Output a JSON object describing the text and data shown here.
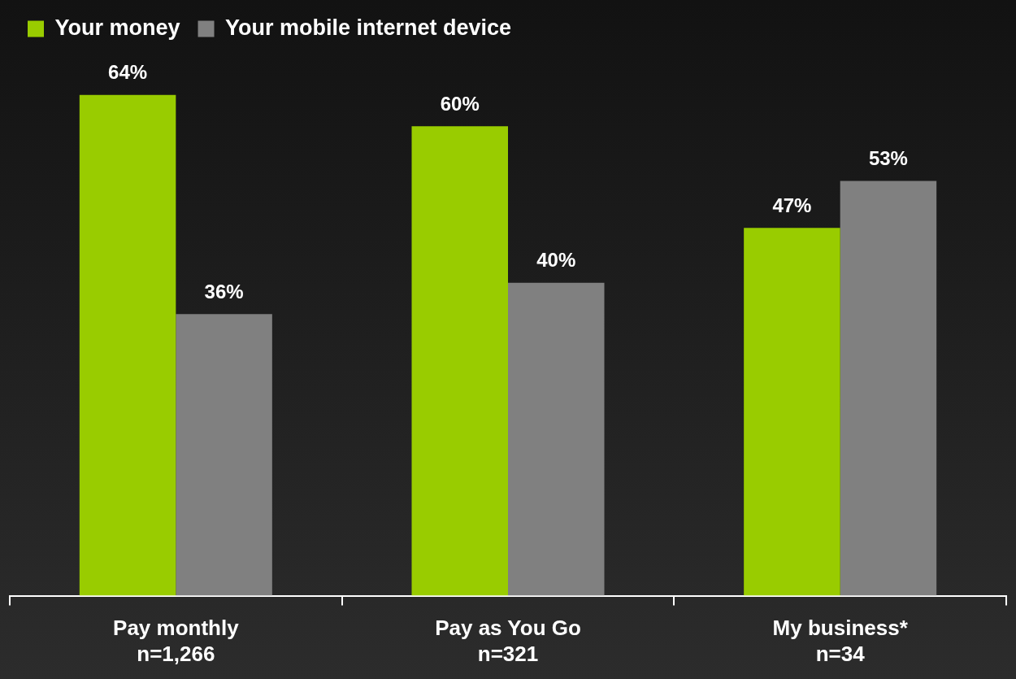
{
  "chart_data": {
    "type": "bar",
    "categories": [
      "Pay monthly\nn=1,266",
      "Pay as You Go\nn=321",
      "My business*\nn=34"
    ],
    "series": [
      {
        "name": "Your money",
        "color": "#99cc00",
        "values": [
          64,
          60,
          47
        ],
        "value_labels": [
          "64%",
          "60%",
          "47%"
        ]
      },
      {
        "name": "Your mobile internet device",
        "color": "#808080",
        "values": [
          36,
          40,
          53
        ],
        "value_labels": [
          "36%",
          "40%",
          "53%"
        ]
      }
    ],
    "legend": "top left",
    "grid": false
  }
}
